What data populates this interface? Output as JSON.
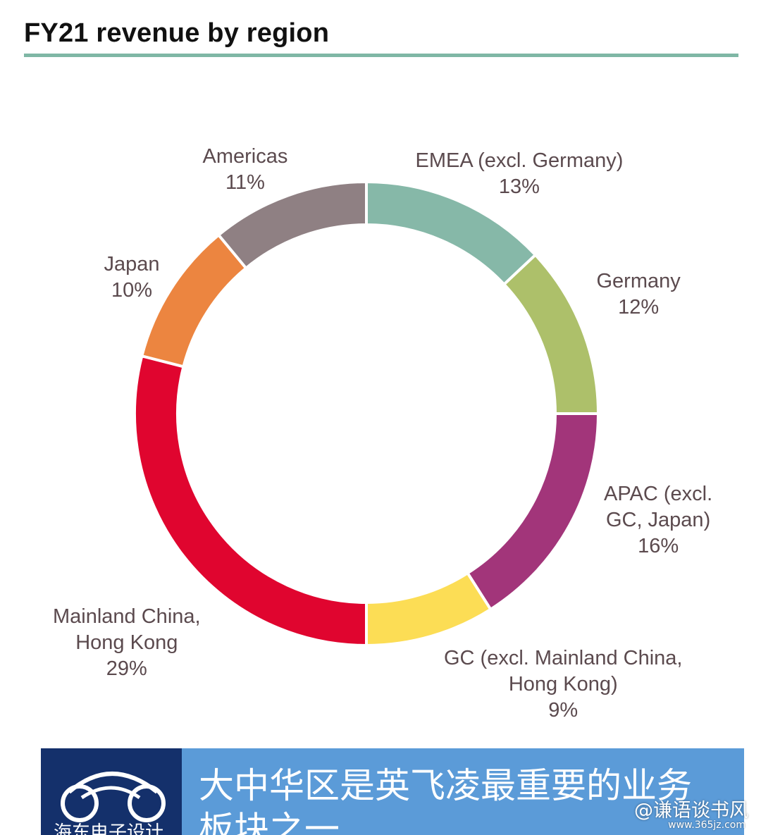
{
  "title": "FY21 revenue by region",
  "colors": {
    "title_rule": "#7fb7a5",
    "banner_logo_bg": "#14306b",
    "banner_text_bg": "#5b9bd8",
    "label_text": "#5b4a4e"
  },
  "chart_data": {
    "type": "pie",
    "subtype": "donut",
    "title": "FY21 revenue by region",
    "unit": "%",
    "slices": [
      {
        "label_lines": [
          "EMEA (excl. Germany)",
          "13%"
        ],
        "value": 13,
        "color": "#86b8a8"
      },
      {
        "label_lines": [
          "Germany",
          "12%"
        ],
        "value": 12,
        "color": "#adc06a"
      },
      {
        "label_lines": [
          "APAC (excl.",
          "GC, Japan)",
          "16%"
        ],
        "value": 16,
        "color": "#a2357a"
      },
      {
        "label_lines": [
          "GC (excl. Mainland China,",
          "Hong Kong)",
          "9%"
        ],
        "value": 9,
        "color": "#fcdd55"
      },
      {
        "label_lines": [
          "Mainland China,",
          "Hong Kong",
          "29%"
        ],
        "value": 29,
        "color": "#e0052f"
      },
      {
        "label_lines": [
          "Japan",
          "10%"
        ],
        "value": 10,
        "color": "#ec8540"
      },
      {
        "label_lines": [
          "Americas",
          "11%"
        ],
        "value": 11,
        "color": "#8f8083"
      }
    ]
  },
  "banner": {
    "text": "大中华区是英飞凌最重要的业务板块之一",
    "logo_icon": "circles-logo-icon",
    "logo_text": "海东电子设计"
  },
  "watermark": {
    "text": "@谦语谈书风",
    "url": "www.365jz.com"
  }
}
